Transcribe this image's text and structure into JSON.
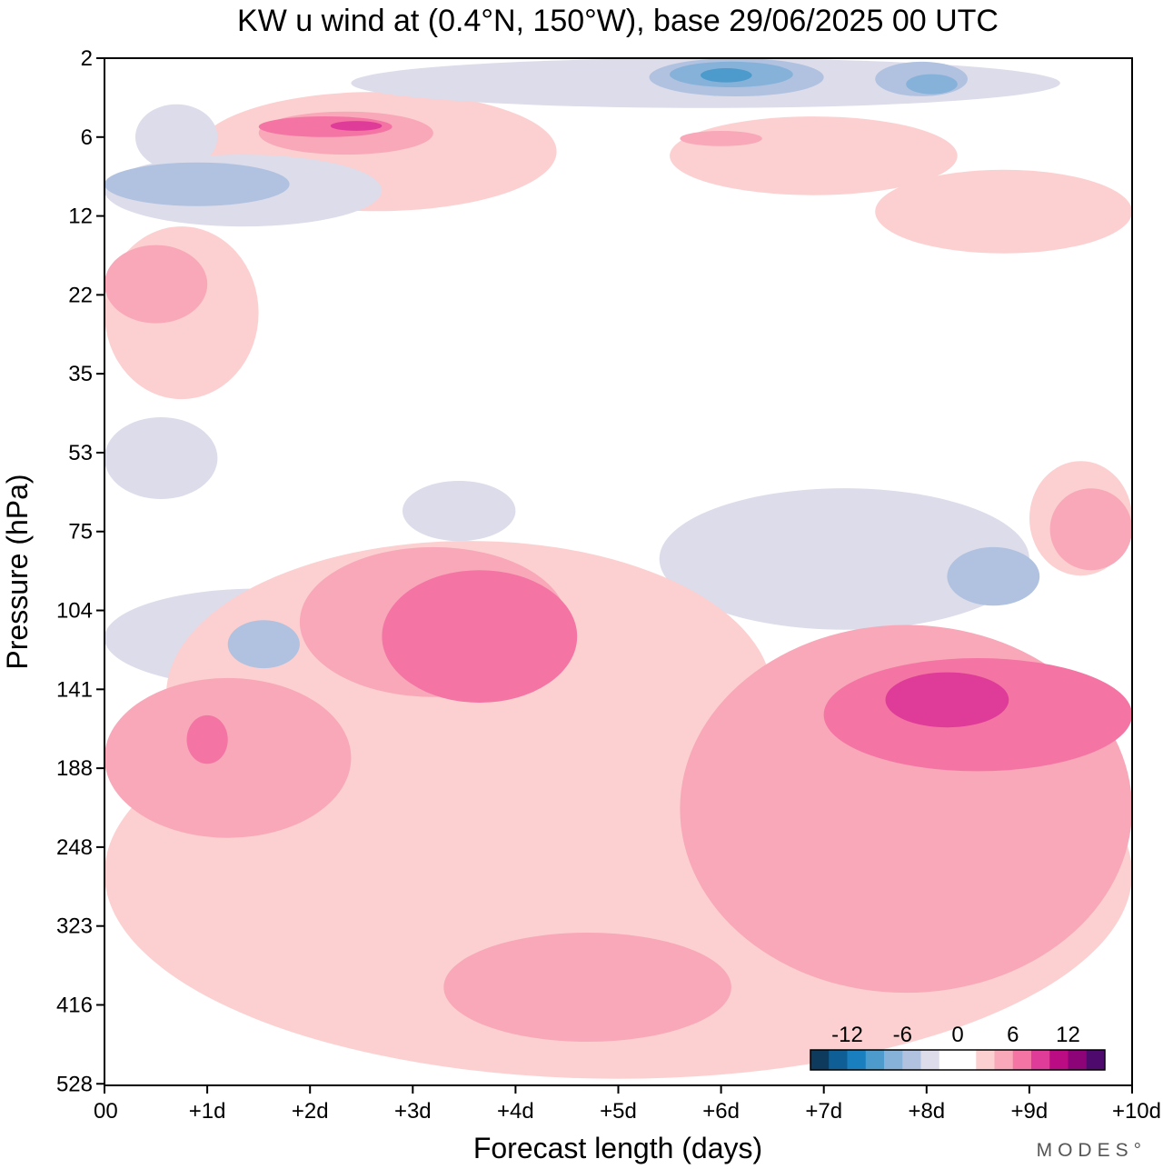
{
  "chart_data": {
    "type": "heatmap",
    "title": "KW u wind at (0.4°N, 150°W),  base 29/06/2025  00 UTC",
    "xlabel": "Forecast length (days)",
    "ylabel": "Pressure (hPa)",
    "x_ticks": [
      {
        "value": 0,
        "label": "00"
      },
      {
        "value": 1,
        "label": "+1d"
      },
      {
        "value": 2,
        "label": "+2d"
      },
      {
        "value": 3,
        "label": "+3d"
      },
      {
        "value": 4,
        "label": "+4d"
      },
      {
        "value": 5,
        "label": "+5d"
      },
      {
        "value": 6,
        "label": "+6d"
      },
      {
        "value": 7,
        "label": "+7d"
      },
      {
        "value": 8,
        "label": "+8d"
      },
      {
        "value": 9,
        "label": "+9d"
      },
      {
        "value": 10,
        "label": "+10d"
      }
    ],
    "xlim": [
      0,
      10
    ],
    "y_levels": [
      2,
      6,
      12,
      22,
      35,
      53,
      75,
      104,
      141,
      188,
      248,
      323,
      416,
      528
    ],
    "y_scale": "log",
    "ylim": [
      2,
      528
    ],
    "y_inverted": true,
    "colorbar": {
      "placement": "bottom-right",
      "tick_labels": [
        {
          "value": -12,
          "label": "-12"
        },
        {
          "value": -6,
          "label": "-6"
        },
        {
          "value": 0,
          "label": "0"
        },
        {
          "value": 6,
          "label": "6"
        },
        {
          "value": 12,
          "label": "12"
        }
      ],
      "colors": [
        "#0e3a5e",
        "#0f5f96",
        "#1a7fbf",
        "#4d9bcc",
        "#86b2d9",
        "#b0c2e0",
        "#dcdcea",
        "#ffffff",
        "#ffffff",
        "#fcd0d0",
        "#f8a8b8",
        "#f474a4",
        "#de3c98",
        "#bb0c84",
        "#8c0478",
        "#4e0a6c"
      ]
    },
    "contour_regions": [
      {
        "level": 2,
        "x": [
          1.5,
          3.2
        ],
        "y": [
          4.2,
          7.0
        ]
      },
      {
        "level": 3,
        "x": [
          1.5,
          2.8
        ],
        "y": [
          4.5,
          6.0
        ]
      },
      {
        "level": 4,
        "x": [
          2.2,
          2.7
        ],
        "y": [
          4.8,
          5.5
        ]
      },
      {
        "level": 2,
        "x": [
          5.6,
          6.4
        ],
        "y": [
          5.5,
          6.5
        ]
      },
      {
        "level": 1,
        "x": [
          0.9,
          4.4
        ],
        "y": [
          3.2,
          11.5
        ]
      },
      {
        "level": 1,
        "x": [
          5.5,
          8.3
        ],
        "y": [
          4.5,
          10.0
        ]
      },
      {
        "level": 1,
        "x": [
          7.5,
          10.0
        ],
        "y": [
          8.0,
          16.0
        ]
      },
      {
        "level": 1,
        "x": [
          0.0,
          1.5
        ],
        "y": [
          13.0,
          40.0
        ]
      },
      {
        "level": 2,
        "x": [
          0.0,
          1.0
        ],
        "y": [
          15.0,
          26.0
        ]
      },
      {
        "level": -1,
        "x": [
          0.0,
          2.7
        ],
        "y": [
          7.0,
          13.0
        ]
      },
      {
        "level": -2,
        "x": [
          0.0,
          1.8
        ],
        "y": [
          7.5,
          11.0
        ]
      },
      {
        "level": -1,
        "x": [
          0.3,
          1.1
        ],
        "y": [
          3.8,
          8.0
        ]
      },
      {
        "level": -2,
        "x": [
          5.3,
          7.0
        ],
        "y": [
          2.0,
          3.4
        ]
      },
      {
        "level": -3,
        "x": [
          5.5,
          6.7
        ],
        "y": [
          2.1,
          3.0
        ]
      },
      {
        "level": -4,
        "x": [
          5.8,
          6.3
        ],
        "y": [
          2.3,
          2.8
        ]
      },
      {
        "level": -2,
        "x": [
          7.5,
          8.4
        ],
        "y": [
          2.1,
          3.4
        ]
      },
      {
        "level": -3,
        "x": [
          7.8,
          8.3
        ],
        "y": [
          2.5,
          3.3
        ]
      },
      {
        "level": -1,
        "x": [
          2.4,
          9.3
        ],
        "y": [
          2.0,
          4.0
        ]
      },
      {
        "level": -1,
        "x": [
          0.0,
          1.1
        ],
        "y": [
          44.0,
          65.0
        ]
      },
      {
        "level": -1,
        "x": [
          2.9,
          4.0
        ],
        "y": [
          60.0,
          78.0
        ]
      },
      {
        "level": -1,
        "x": [
          5.4,
          9.0
        ],
        "y": [
          62.0,
          112.0
        ]
      },
      {
        "level": -2,
        "x": [
          8.2,
          9.1
        ],
        "y": [
          80.0,
          102.0
        ]
      },
      {
        "level": -1,
        "x": [
          0.0,
          3.0
        ],
        "y": [
          95.0,
          140.0
        ]
      },
      {
        "level": -2,
        "x": [
          1.2,
          1.9
        ],
        "y": [
          108.0,
          130.0
        ]
      },
      {
        "level": 1,
        "x": [
          0.6,
          6.5
        ],
        "y": [
          78.0,
          250.0
        ]
      },
      {
        "level": 2,
        "x": [
          1.9,
          4.5
        ],
        "y": [
          80.0,
          145.0
        ]
      },
      {
        "level": 3,
        "x": [
          2.7,
          4.6
        ],
        "y": [
          88.0,
          148.0
        ]
      },
      {
        "level": 2,
        "x": [
          5.6,
          10.0
        ],
        "y": [
          110.0,
          400.0
        ]
      },
      {
        "level": 3,
        "x": [
          7.0,
          10.0
        ],
        "y": [
          125.0,
          190.0
        ]
      },
      {
        "level": 4,
        "x": [
          7.6,
          8.8
        ],
        "y": [
          132.0,
          162.0
        ]
      },
      {
        "level": 1,
        "x": [
          0.0,
          10.0
        ],
        "y": [
          130.0,
          520.0
        ]
      },
      {
        "level": 2,
        "x": [
          0.0,
          2.4
        ],
        "y": [
          135.0,
          240.0
        ]
      },
      {
        "level": 3,
        "x": [
          0.8,
          1.2
        ],
        "y": [
          155.0,
          185.0
        ]
      },
      {
        "level": 2,
        "x": [
          3.3,
          6.1
        ],
        "y": [
          330.0,
          465.0
        ]
      },
      {
        "level": 1,
        "x": [
          9.0,
          10.0
        ],
        "y": [
          55.0,
          90.0
        ]
      },
      {
        "level": 2,
        "x": [
          9.2,
          10.0
        ],
        "y": [
          62.0,
          88.0
        ]
      }
    ]
  },
  "watermark": "MODES°"
}
